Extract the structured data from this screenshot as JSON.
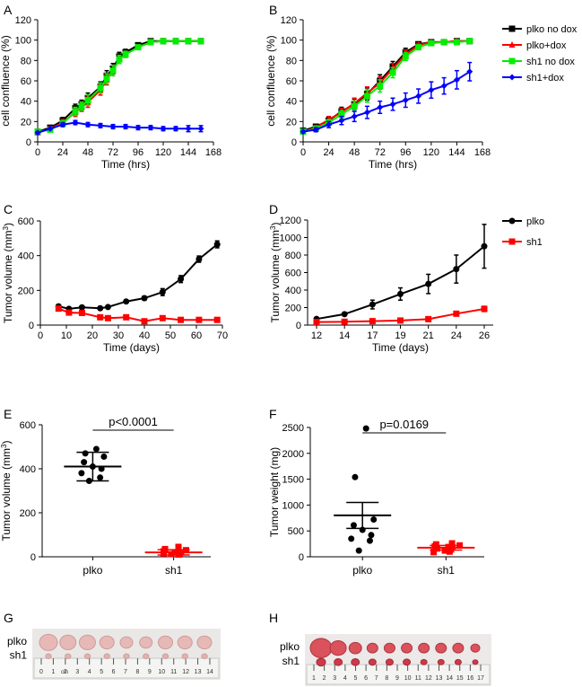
{
  "figure": {
    "panel_letters": [
      "A",
      "B",
      "C",
      "D",
      "E",
      "F",
      "G",
      "H"
    ],
    "photo_G": {
      "row_labels": [
        "plko",
        "sh1"
      ],
      "ruler_ticks": [
        "0",
        "1",
        "2",
        "3",
        "4",
        "5",
        "6",
        "7",
        "8",
        "9",
        "10",
        "11",
        "12",
        "13",
        "14"
      ],
      "ruler_cm_label": "cm",
      "tumor_count_top": 9,
      "tumor_count_bottom": 9
    },
    "photo_H": {
      "row_labels": [
        "plko",
        "sh1"
      ],
      "ruler_ticks": [
        "1",
        "2",
        "3",
        "4",
        "5",
        "6",
        "7",
        "8",
        "9",
        "10",
        "11",
        "12",
        "13",
        "14",
        "15",
        "16",
        "17"
      ],
      "tumor_count_top": 10,
      "tumor_count_bottom": 10
    }
  },
  "chart_data": [
    {
      "id": "A",
      "type": "line",
      "xlabel": "Time (hrs)",
      "ylabel": "cell confluence (%)",
      "xlim": [
        0,
        168
      ],
      "ylim": [
        0,
        120
      ],
      "xticks": [
        0,
        24,
        48,
        72,
        96,
        120,
        144,
        168
      ],
      "yticks": [
        0,
        20,
        40,
        60,
        80,
        100,
        120
      ],
      "series": [
        {
          "name": "plko no dox",
          "color": "#000000",
          "marker": "square",
          "x": [
            0,
            12,
            24,
            36,
            42,
            48,
            60,
            66,
            72,
            78,
            84,
            96,
            108,
            120,
            132,
            144,
            156
          ],
          "y": [
            10,
            14,
            21,
            33,
            37,
            43,
            54,
            65,
            72,
            84,
            88,
            95,
            99,
            99,
            99,
            99,
            99
          ],
          "err": [
            1,
            2,
            3,
            4,
            4,
            5,
            5,
            5,
            5,
            4,
            3,
            2,
            1,
            1,
            1,
            1,
            1
          ]
        },
        {
          "name": "plko+dox",
          "color": "#ff0000",
          "marker": "triangle",
          "x": [
            0,
            12,
            24,
            36,
            42,
            48,
            60,
            66,
            72,
            78,
            84,
            96,
            108,
            120,
            132,
            144,
            156
          ],
          "y": [
            9,
            13,
            19,
            29,
            34,
            39,
            51,
            61,
            70,
            81,
            86,
            93,
            98,
            99,
            99,
            99,
            99
          ],
          "err": [
            1,
            2,
            3,
            4,
            4,
            5,
            5,
            5,
            5,
            4,
            3,
            2,
            1,
            1,
            1,
            1,
            1
          ]
        },
        {
          "name": "sh1 no dox",
          "color": "#00ee00",
          "marker": "square",
          "x": [
            0,
            12,
            24,
            36,
            42,
            48,
            60,
            66,
            72,
            78,
            84,
            96,
            108,
            120,
            132,
            144,
            156
          ],
          "y": [
            10,
            12,
            18,
            30,
            35,
            41,
            53,
            62,
            70,
            81,
            86,
            93,
            98,
            99,
            99,
            99,
            99
          ],
          "err": [
            1,
            2,
            3,
            4,
            4,
            5,
            5,
            5,
            5,
            4,
            3,
            2,
            1,
            1,
            1,
            1,
            1
          ]
        },
        {
          "name": "sh1+dox",
          "color": "#0000ff",
          "marker": "diamond",
          "x": [
            0,
            12,
            24,
            36,
            48,
            60,
            72,
            84,
            96,
            108,
            120,
            132,
            144,
            156
          ],
          "y": [
            9,
            13,
            17,
            19,
            17,
            16,
            15,
            15,
            14,
            14,
            13,
            13,
            13,
            13
          ],
          "err": [
            1,
            1,
            2,
            2,
            2,
            2,
            2,
            2,
            2,
            2,
            2,
            2,
            3,
            3
          ]
        }
      ]
    },
    {
      "id": "B",
      "type": "line",
      "xlabel": "Time (hrs)",
      "ylabel": "cell confluence (%)",
      "xlim": [
        0,
        168
      ],
      "ylim": [
        0,
        120
      ],
      "xticks": [
        0,
        24,
        48,
        72,
        96,
        120,
        144,
        168
      ],
      "yticks": [
        0,
        20,
        40,
        60,
        80,
        100,
        120
      ],
      "legend": [
        "plko no dox",
        "plko+dox",
        "sh1 no dox",
        "sh1+dox"
      ],
      "series": [
        {
          "name": "plko no dox",
          "color": "#000000",
          "marker": "square",
          "x": [
            0,
            12,
            24,
            36,
            48,
            60,
            72,
            84,
            96,
            108,
            120,
            132,
            144,
            156
          ],
          "y": [
            11,
            15,
            21,
            30,
            37,
            47,
            60,
            74,
            88,
            96,
            98,
            98,
            99,
            99
          ],
          "err": [
            1,
            2,
            3,
            4,
            5,
            6,
            6,
            5,
            4,
            2,
            1,
            1,
            1,
            1
          ]
        },
        {
          "name": "plko+dox",
          "color": "#ff0000",
          "marker": "triangle",
          "x": [
            0,
            12,
            24,
            36,
            48,
            60,
            72,
            84,
            96,
            108,
            120,
            132,
            144,
            156
          ],
          "y": [
            10,
            14,
            22,
            29,
            38,
            48,
            58,
            72,
            86,
            95,
            98,
            98,
            99,
            99
          ],
          "err": [
            1,
            2,
            3,
            4,
            5,
            6,
            6,
            5,
            4,
            2,
            1,
            1,
            1,
            1
          ]
        },
        {
          "name": "sh1 no dox",
          "color": "#00ee00",
          "marker": "square",
          "x": [
            0,
            12,
            24,
            36,
            48,
            60,
            72,
            84,
            96,
            108,
            120,
            132,
            144,
            156
          ],
          "y": [
            10,
            13,
            19,
            27,
            35,
            45,
            55,
            68,
            84,
            93,
            97,
            98,
            98,
            99
          ],
          "err": [
            1,
            2,
            3,
            4,
            5,
            6,
            6,
            5,
            4,
            2,
            1,
            1,
            1,
            1
          ]
        },
        {
          "name": "sh1+dox",
          "color": "#0000ff",
          "marker": "diamond",
          "x": [
            0,
            12,
            24,
            36,
            48,
            60,
            72,
            84,
            96,
            108,
            120,
            132,
            144,
            156
          ],
          "y": [
            10,
            12,
            17,
            21,
            25,
            29,
            34,
            37,
            41,
            45,
            51,
            55,
            61,
            69
          ],
          "err": [
            1,
            2,
            3,
            4,
            5,
            6,
            6,
            6,
            7,
            7,
            8,
            8,
            9,
            9
          ]
        }
      ]
    },
    {
      "id": "C",
      "type": "line",
      "xlabel": "Time (days)",
      "ylabel": "Tumor volume (mm3)",
      "xlim": [
        0,
        70
      ],
      "ylim": [
        0,
        600
      ],
      "xticks": [
        0,
        10,
        20,
        30,
        40,
        50,
        60,
        70
      ],
      "yticks": [
        0,
        200,
        400,
        600
      ],
      "series": [
        {
          "name": "plko",
          "color": "#000000",
          "marker": "circle",
          "x": [
            7,
            11,
            16,
            23,
            26,
            33,
            40,
            47,
            54,
            61,
            68
          ],
          "y": [
            108,
            94,
            102,
            97,
            104,
            136,
            155,
            190,
            265,
            380,
            465
          ],
          "err": [
            5,
            5,
            6,
            5,
            6,
            8,
            12,
            20,
            20,
            18,
            20
          ]
        },
        {
          "name": "sh1",
          "color": "#ff0000",
          "marker": "square",
          "x": [
            7,
            11,
            16,
            23,
            26,
            33,
            40,
            47,
            54,
            61,
            68
          ],
          "y": [
            95,
            72,
            70,
            45,
            40,
            45,
            22,
            40,
            30,
            30,
            30
          ],
          "err": [
            5,
            5,
            5,
            4,
            4,
            4,
            3,
            4,
            3,
            3,
            3
          ]
        }
      ]
    },
    {
      "id": "D",
      "type": "line",
      "xlabel": "Time (days)",
      "ylabel": "Tumor volume (mm3)",
      "ylim": [
        0,
        1200
      ],
      "xticks": [
        12,
        14,
        17,
        19,
        21,
        24,
        26
      ],
      "yticks": [
        0,
        200,
        400,
        600,
        800,
        1000,
        1200
      ],
      "legend": [
        "plko",
        "sh1"
      ],
      "series": [
        {
          "name": "plko",
          "color": "#000000",
          "marker": "circle",
          "x": [
            12,
            14,
            17,
            19,
            21,
            24,
            26
          ],
          "y": [
            70,
            125,
            235,
            355,
            470,
            640,
            900
          ],
          "err": [
            10,
            20,
            50,
            70,
            110,
            160,
            250
          ]
        },
        {
          "name": "sh1",
          "color": "#ff0000",
          "marker": "square",
          "x": [
            12,
            14,
            17,
            19,
            21,
            24,
            26
          ],
          "y": [
            35,
            38,
            45,
            52,
            68,
            130,
            185
          ],
          "err": [
            5,
            5,
            6,
            6,
            8,
            15,
            30
          ]
        }
      ]
    },
    {
      "id": "E",
      "type": "scatter",
      "ylabel": "Tumor volume (mm3)",
      "categories": [
        "plko",
        "sh1"
      ],
      "ylim": [
        0,
        600
      ],
      "yticks": [
        0,
        200,
        400,
        600
      ],
      "annotation": "p<0.0001",
      "groups": [
        {
          "name": "plko",
          "color": "#000000",
          "marker": "circle",
          "values": [
            490,
            470,
            455,
            430,
            410,
            400,
            380,
            360,
            345
          ],
          "mean": 410,
          "err": 65
        },
        {
          "name": "sh1",
          "color": "#ff0000",
          "marker": "square",
          "values": [
            45,
            35,
            30,
            25,
            20,
            20,
            15,
            15,
            12,
            10
          ],
          "mean": 20,
          "err": 12
        }
      ]
    },
    {
      "id": "F",
      "type": "scatter",
      "ylabel": "Tumor weight (mg)",
      "categories": [
        "plko",
        "sh1"
      ],
      "ylim": [
        0,
        2500
      ],
      "yticks": [
        0,
        500,
        1000,
        1500,
        2000,
        2500
      ],
      "annotation": "p=0.0169",
      "groups": [
        {
          "name": "plko",
          "color": "#000000",
          "marker": "circle",
          "values": [
            2480,
            1540,
            720,
            610,
            520,
            420,
            350,
            310,
            120
          ],
          "mean": 800,
          "err": 250
        },
        {
          "name": "sh1",
          "color": "#ff0000",
          "marker": "square",
          "values": [
            260,
            240,
            220,
            200,
            190,
            180,
            160,
            140,
            120,
            100,
            90
          ],
          "mean": 175,
          "err": 45
        }
      ]
    }
  ]
}
